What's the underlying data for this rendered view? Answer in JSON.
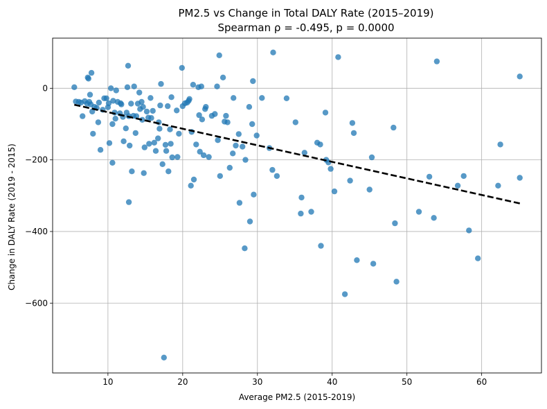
{
  "chart_data": {
    "type": "scatter",
    "title": "PM2.5 vs Change in Total DALY Rate (2015–2019)",
    "subtitle": "Spearman ρ = -0.495, p = 0.0000",
    "xlabel": "Average PM2.5 (2015-2019)",
    "ylabel": "Change in DALY Rate (2019 - 2015)",
    "xlim": [
      2.6,
      68.0
    ],
    "ylim": [
      -795,
      140
    ],
    "xticks": [
      10,
      20,
      30,
      40,
      50,
      60
    ],
    "yticks": [
      0,
      -200,
      -400,
      -600
    ],
    "xtick_labels": [
      "10",
      "20",
      "30",
      "40",
      "50",
      "60"
    ],
    "ytick_labels": [
      "0",
      "−200",
      "−400",
      "−600"
    ],
    "grid": true,
    "point_color": "#1f77b4",
    "point_alpha": 0.75,
    "trend_line": {
      "x": [
        5.5,
        65.2
      ],
      "y": [
        -46,
        -322
      ],
      "color": "#000000",
      "style": "dashed"
    },
    "points": [
      [
        5.5,
        3
      ],
      [
        5.7,
        -37
      ],
      [
        6.1,
        -38
      ],
      [
        6.4,
        -40
      ],
      [
        6.6,
        -78
      ],
      [
        6.9,
        -36
      ],
      [
        7.2,
        -43
      ],
      [
        7.3,
        30
      ],
      [
        7.4,
        27
      ],
      [
        7.5,
        -38
      ],
      [
        7.6,
        -18
      ],
      [
        7.7,
        -45
      ],
      [
        7.8,
        43
      ],
      [
        7.9,
        -65
      ],
      [
        8.0,
        -127
      ],
      [
        8.2,
        -52
      ],
      [
        8.5,
        -55
      ],
      [
        8.7,
        -95
      ],
      [
        8.8,
        -40
      ],
      [
        9.0,
        -172
      ],
      [
        9.3,
        -60
      ],
      [
        9.5,
        -28
      ],
      [
        9.8,
        -28
      ],
      [
        10.0,
        -53
      ],
      [
        10.1,
        -42
      ],
      [
        10.2,
        -153
      ],
      [
        10.4,
        0
      ],
      [
        10.6,
        -100
      ],
      [
        10.6,
        -208
      ],
      [
        10.7,
        -35
      ],
      [
        10.9,
        -68
      ],
      [
        11.0,
        -85
      ],
      [
        11.1,
        -6
      ],
      [
        11.3,
        -38
      ],
      [
        11.6,
        -70
      ],
      [
        11.7,
        -42
      ],
      [
        11.8,
        -45
      ],
      [
        12.0,
        -80
      ],
      [
        12.1,
        -148
      ],
      [
        12.4,
        -112
      ],
      [
        12.5,
        -68
      ],
      [
        12.6,
        3
      ],
      [
        12.7,
        63
      ],
      [
        12.8,
        -78
      ],
      [
        12.8,
        -318
      ],
      [
        12.9,
        -160
      ],
      [
        13.1,
        -43
      ],
      [
        13.2,
        -232
      ],
      [
        13.4,
        -77
      ],
      [
        13.5,
        5
      ],
      [
        13.7,
        -125
      ],
      [
        13.8,
        -78
      ],
      [
        14.0,
        -43
      ],
      [
        14.2,
        -12
      ],
      [
        14.3,
        -58
      ],
      [
        14.5,
        -38
      ],
      [
        14.6,
        -88
      ],
      [
        14.7,
        -52
      ],
      [
        14.8,
        -237
      ],
      [
        14.9,
        -165
      ],
      [
        15.2,
        -65
      ],
      [
        15.4,
        -82
      ],
      [
        15.5,
        -155
      ],
      [
        15.7,
        -27
      ],
      [
        15.8,
        -83
      ],
      [
        16.0,
        -63
      ],
      [
        16.2,
        -152
      ],
      [
        16.4,
        -175
      ],
      [
        16.7,
        -140
      ],
      [
        16.8,
        -95
      ],
      [
        16.9,
        -113
      ],
      [
        17.0,
        -48
      ],
      [
        17.1,
        12
      ],
      [
        17.3,
        -212
      ],
      [
        17.5,
        -752
      ],
      [
        17.7,
        -158
      ],
      [
        17.8,
        -175
      ],
      [
        18.0,
        -50
      ],
      [
        18.1,
        -232
      ],
      [
        18.3,
        -115
      ],
      [
        18.4,
        -155
      ],
      [
        18.5,
        -25
      ],
      [
        18.6,
        -193
      ],
      [
        19.2,
        -62
      ],
      [
        19.3,
        -192
      ],
      [
        19.5,
        -127
      ],
      [
        19.9,
        57
      ],
      [
        20.0,
        -50
      ],
      [
        20.3,
        -42
      ],
      [
        20.6,
        -40
      ],
      [
        20.8,
        -35
      ],
      [
        20.9,
        -30
      ],
      [
        21.1,
        -272
      ],
      [
        21.2,
        -122
      ],
      [
        21.4,
        10
      ],
      [
        21.5,
        -255
      ],
      [
        21.8,
        -157
      ],
      [
        22.1,
        3
      ],
      [
        22.2,
        -75
      ],
      [
        22.3,
        -177
      ],
      [
        22.5,
        5
      ],
      [
        22.6,
        -87
      ],
      [
        22.8,
        -187
      ],
      [
        23.0,
        -58
      ],
      [
        23.1,
        -52
      ],
      [
        23.5,
        -192
      ],
      [
        23.9,
        -77
      ],
      [
        24.3,
        -72
      ],
      [
        24.6,
        5
      ],
      [
        24.7,
        -145
      ],
      [
        24.9,
        92
      ],
      [
        25.0,
        -245
      ],
      [
        25.4,
        30
      ],
      [
        25.6,
        -93
      ],
      [
        25.8,
        -77
      ],
      [
        26.0,
        -95
      ],
      [
        26.3,
        -222
      ],
      [
        26.7,
        -182
      ],
      [
        26.8,
        -27
      ],
      [
        27.1,
        -160
      ],
      [
        27.5,
        -128
      ],
      [
        27.6,
        -320
      ],
      [
        28.0,
        -163
      ],
      [
        28.3,
        -447
      ],
      [
        28.4,
        -200
      ],
      [
        28.9,
        -52
      ],
      [
        29.0,
        -372
      ],
      [
        29.3,
        -100
      ],
      [
        29.4,
        20
      ],
      [
        29.5,
        -297
      ],
      [
        29.9,
        -132
      ],
      [
        30.6,
        -27
      ],
      [
        31.6,
        -167
      ],
      [
        32.0,
        -228
      ],
      [
        32.1,
        100
      ],
      [
        32.6,
        -245
      ],
      [
        33.9,
        -28
      ],
      [
        35.1,
        -95
      ],
      [
        35.8,
        -350
      ],
      [
        35.9,
        -305
      ],
      [
        36.3,
        -180
      ],
      [
        37.2,
        -345
      ],
      [
        38.0,
        -152
      ],
      [
        38.4,
        -157
      ],
      [
        38.5,
        -440
      ],
      [
        39.1,
        -68
      ],
      [
        39.2,
        -200
      ],
      [
        39.5,
        -207
      ],
      [
        39.8,
        -225
      ],
      [
        40.3,
        -288
      ],
      [
        40.8,
        87
      ],
      [
        41.7,
        -575
      ],
      [
        42.4,
        -258
      ],
      [
        42.7,
        -97
      ],
      [
        42.9,
        -125
      ],
      [
        43.3,
        -480
      ],
      [
        45.0,
        -283
      ],
      [
        45.3,
        -193
      ],
      [
        45.5,
        -490
      ],
      [
        48.2,
        -110
      ],
      [
        48.4,
        -377
      ],
      [
        48.6,
        -540
      ],
      [
        51.6,
        -345
      ],
      [
        53.0,
        -247
      ],
      [
        53.6,
        -362
      ],
      [
        54.0,
        75
      ],
      [
        56.8,
        -272
      ],
      [
        57.6,
        -245
      ],
      [
        58.3,
        -397
      ],
      [
        59.5,
        -475
      ],
      [
        62.2,
        -272
      ],
      [
        62.5,
        -157
      ],
      [
        65.1,
        33
      ],
      [
        65.1,
        -250
      ]
    ]
  }
}
